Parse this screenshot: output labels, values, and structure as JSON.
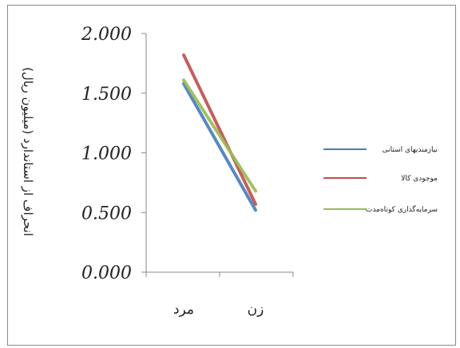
{
  "chart_data": {
    "type": "line",
    "title": "",
    "xlabel": "",
    "ylabel": "انحراف از استاندارد (میلیون ریال)",
    "categories": [
      "مرد",
      "زن"
    ],
    "yticks": [
      "0.000",
      "0.500",
      "1.000",
      "1.500",
      "2.000"
    ],
    "ylim": [
      0,
      2
    ],
    "grid": false,
    "legend_position": "right",
    "series": [
      {
        "name": "نیازمندیهای استانی",
        "values": [
          1.58,
          0.52
        ],
        "color": "#4a7ebb"
      },
      {
        "name": "موجودی کالا",
        "values": [
          1.82,
          0.57
        ],
        "color": "#c0504d"
      },
      {
        "name": "سرمایه‌گذاری کوتاه‌مدت",
        "values": [
          1.61,
          0.68
        ],
        "color": "#9bbb59"
      }
    ]
  }
}
